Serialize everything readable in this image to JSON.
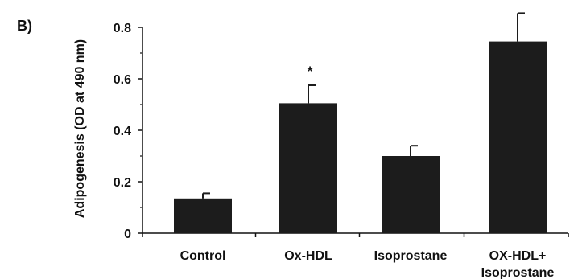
{
  "panel_label": "B)",
  "chart_data": {
    "type": "bar",
    "title": "",
    "xlabel": "",
    "ylabel": "Adipogenesis (OD at 490 nm)",
    "ylim": [
      0,
      0.8
    ],
    "yticks": [
      "0",
      "0.2",
      "0.4",
      "0.6",
      "0.8"
    ],
    "categories": [
      [
        "Control"
      ],
      [
        "Ox-HDL"
      ],
      [
        "Isoprostane"
      ],
      [
        "OX-HDL+",
        "Isoprostane"
      ]
    ],
    "values": [
      0.135,
      0.505,
      0.3,
      0.745
    ],
    "errors": [
      0.02,
      0.07,
      0.04,
      0.11
    ],
    "annotations": [
      "",
      "*",
      "",
      ""
    ],
    "grid": false,
    "bar_color": "#1c1c1c",
    "axis_color": "#111111"
  }
}
